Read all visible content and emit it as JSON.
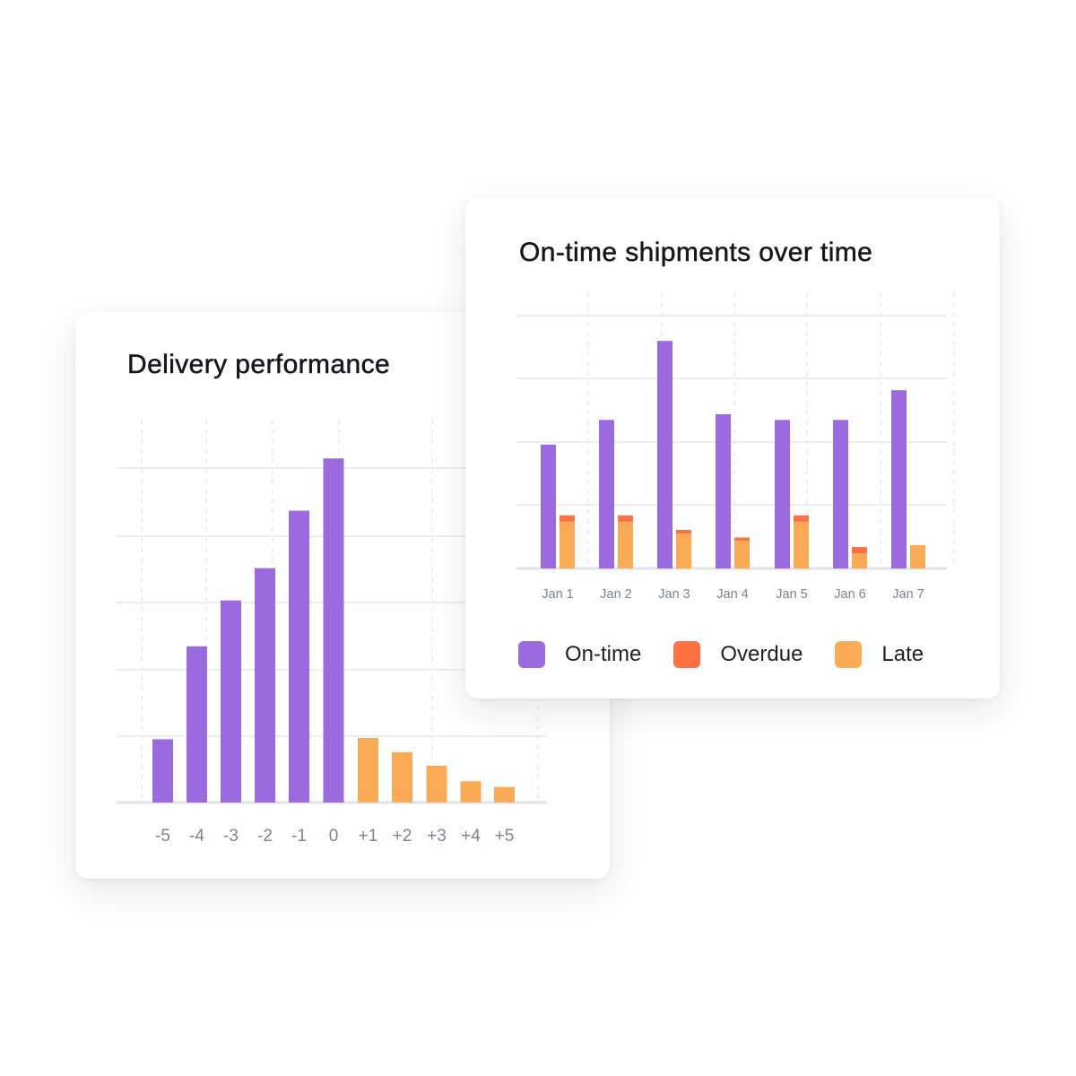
{
  "colors": {
    "on_time": "#9b6ade",
    "overdue": "#ff7043",
    "late": "#fbab55",
    "grid": "#eeeef2",
    "axis": "#e2e2e8"
  },
  "left_card": {
    "title": "Delivery performance"
  },
  "right_card": {
    "title": "On-time shipments over time",
    "legend": [
      {
        "label": "On-time",
        "color": "#9b6ade"
      },
      {
        "label": "Overdue",
        "color": "#ff7043"
      },
      {
        "label": "Late",
        "color": "#fbab55"
      }
    ]
  },
  "chart_data": [
    {
      "type": "bar",
      "title": "Delivery performance",
      "categories": [
        "-5",
        "-4",
        "-3",
        "-2",
        "-1",
        "0",
        "+1",
        "+2",
        "+3",
        "+4",
        "+5"
      ],
      "values": [
        9.8,
        24.2,
        31.3,
        36.3,
        45.2,
        53.3,
        10.0,
        7.8,
        5.7,
        3.3,
        2.4
      ],
      "bar_colors": [
        "#9b6ade",
        "#9b6ade",
        "#9b6ade",
        "#9b6ade",
        "#9b6ade",
        "#9b6ade",
        "#fbab55",
        "#fbab55",
        "#fbab55",
        "#fbab55",
        "#fbab55"
      ],
      "ylim": [
        0,
        60
      ],
      "grid": true
    },
    {
      "type": "bar",
      "title": "On-time shipments over time",
      "categories": [
        "Jan 1",
        "Jan 2",
        "Jan 3",
        "Jan 4",
        "Jan 5",
        "Jan 6",
        "Jan 7"
      ],
      "series": [
        {
          "name": "On-time",
          "values": [
            19.6,
            23.5,
            36.0,
            24.4,
            23.5,
            23.5,
            28.2
          ]
        },
        {
          "name": "Late",
          "values": [
            7.4,
            7.4,
            5.5,
            4.4,
            7.4,
            2.4,
            3.7
          ]
        },
        {
          "name": "Overdue",
          "values": [
            1.0,
            1.0,
            0.6,
            0.5,
            1.0,
            1.0,
            0
          ]
        }
      ],
      "ylim": [
        0,
        40
      ],
      "grid": true,
      "legend_position": "bottom"
    }
  ]
}
